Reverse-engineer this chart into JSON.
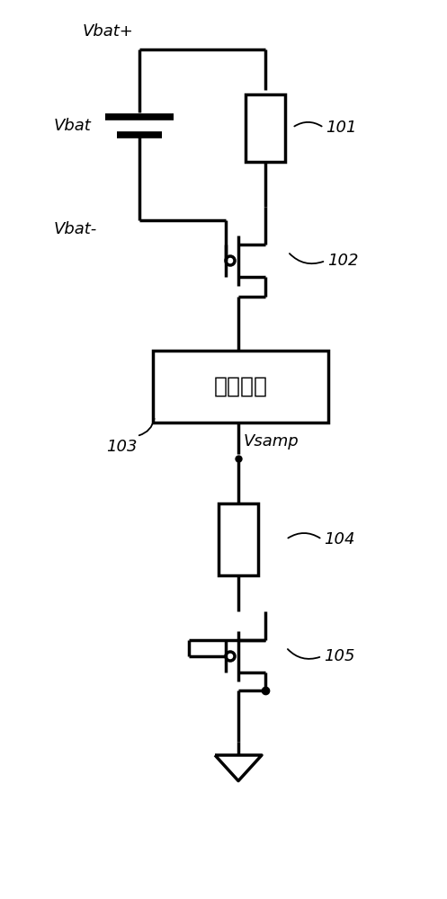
{
  "bg_color": "#ffffff",
  "line_color": "#000000",
  "line_width": 2.5,
  "label_vbat_plus": "Vbat+",
  "label_vbat": "Vbat",
  "label_vbat_minus": "Vbat-",
  "label_vsamp": "Vsamp",
  "label_bias": "偏置电路",
  "label_101": "101",
  "label_102": "102",
  "label_103": "103",
  "label_104": "104",
  "label_105": "105",
  "font_size_labels": 13,
  "font_size_numbers": 13,
  "font_size_bias": 18
}
